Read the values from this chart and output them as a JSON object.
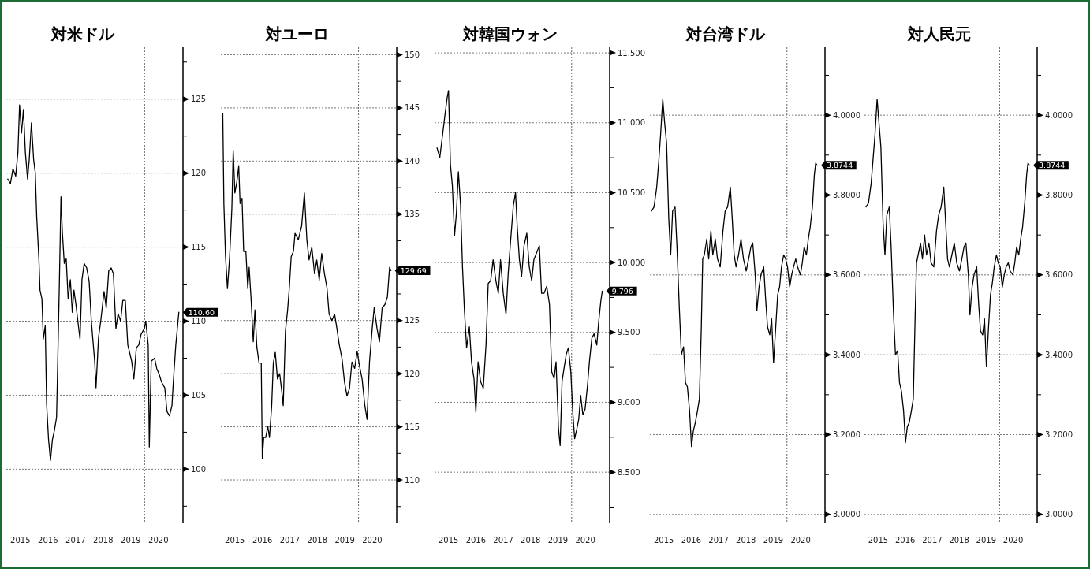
{
  "chart_data": [
    {
      "type": "line",
      "title": "対米ドル",
      "grid": "y",
      "line_style": "solid",
      "x": [
        2015.04,
        2015.14,
        2015.23,
        2015.33,
        2015.41,
        2015.47,
        2015.54,
        2015.61,
        2015.68,
        2015.76,
        2015.82,
        2015.9,
        2015.98,
        2016.04,
        2016.09,
        2016.17,
        2016.21,
        2016.28,
        2016.33,
        2016.4,
        2016.45,
        2016.52,
        2016.59,
        2016.66,
        2016.73,
        2016.81,
        2016.85,
        2016.91,
        2016.97,
        2017.02,
        2017.09,
        2017.16,
        2017.23,
        2017.31,
        2017.38,
        2017.44,
        2017.52,
        2017.6,
        2017.66,
        2017.73,
        2017.81,
        2017.9,
        2017.99,
        2018.07,
        2018.19,
        2018.24,
        2018.33,
        2018.41,
        2018.53,
        2018.61,
        2018.7,
        2018.79,
        2018.87,
        2018.96,
        2019.04,
        2019.13,
        2019.21,
        2019.3,
        2019.39,
        2019.53,
        2019.61,
        2019.7,
        2019.79,
        2019.87,
        2019.99,
        2020.04,
        2020.13,
        2020.17,
        2020.24,
        2020.36,
        2020.44,
        2020.53,
        2020.61,
        2020.73,
        2020.81,
        2020.9,
        2020.99,
        2021.04,
        2021.13,
        2021.21,
        2021.24
      ],
      "series": [
        {
          "color": "#000000",
          "values": [
            119.6,
            119.3,
            120.3,
            119.8,
            121.4,
            124.6,
            122.7,
            124.3,
            121.4,
            119.6,
            120.9,
            123.4,
            120.9,
            120,
            117.1,
            114.2,
            112.1,
            111.5,
            108.8,
            109.7,
            104.4,
            102,
            100.6,
            102,
            102.6,
            103.5,
            107,
            112.4,
            118.4,
            116,
            113.9,
            114.2,
            111.5,
            112.8,
            110.6,
            112.1,
            111,
            109.7,
            108.8,
            112.8,
            113.9,
            113.6,
            112.7,
            110,
            107.3,
            105.5,
            108.9,
            110,
            112,
            110.9,
            113.4,
            113.6,
            113.2,
            109.5,
            110.5,
            110,
            111.4,
            111.4,
            108.4,
            107.3,
            106.1,
            108.2,
            108.4,
            109.1,
            109.5,
            110,
            108.4,
            101.5,
            107.3,
            107.5,
            106.8,
            106.4,
            105.9,
            105.5,
            103.9,
            103.6,
            104.3,
            105.9,
            108.4,
            110,
            110.6
          ]
        }
      ],
      "xlim": [
        2014.99,
        2021.39
      ],
      "ylim": [
        96.4,
        128.5
      ],
      "xticks": [
        {
          "value": 2015.5,
          "label": "2015"
        },
        {
          "value": 2016.5,
          "label": "2016"
        },
        {
          "value": 2017.5,
          "label": "2017"
        },
        {
          "value": 2018.5,
          "label": "2018"
        },
        {
          "value": 2019.5,
          "label": "2019"
        },
        {
          "value": 2020.5,
          "label": "2020"
        }
      ],
      "yticks": [
        {
          "value": 97.5,
          "label": null
        },
        100,
        {
          "value": 102.5,
          "label": null
        },
        105,
        {
          "value": 107.5,
          "label": null
        },
        110,
        {
          "value": 112.5,
          "label": null
        },
        115,
        {
          "value": 117.5,
          "label": null
        },
        120,
        {
          "value": 122.5,
          "label": null
        },
        125,
        {
          "value": 127.5,
          "label": null
        }
      ],
      "ref_lines": [
        {
          "axis": "x",
          "value": 2020.0,
          "line_style": "dotted"
        }
      ],
      "annotations": [
        {
          "text": "110.60",
          "x": 2021.24,
          "y": 110.6
        }
      ]
    },
    {
      "type": "line",
      "title": "対ユーロ",
      "grid": "y",
      "line_style": "solid",
      "x": [
        2015.06,
        2015.1,
        2015.16,
        2015.23,
        2015.31,
        2015.39,
        2015.44,
        2015.5,
        2015.57,
        2015.64,
        2015.69,
        2015.76,
        2015.82,
        2015.9,
        2015.97,
        2016.02,
        2016.09,
        2016.17,
        2016.23,
        2016.3,
        2016.38,
        2016.46,
        2016.5,
        2016.55,
        2016.62,
        2016.7,
        2016.76,
        2016.84,
        2016.9,
        2016.97,
        2017.05,
        2017.13,
        2017.2,
        2017.26,
        2017.34,
        2017.42,
        2017.48,
        2017.55,
        2017.63,
        2017.69,
        2017.81,
        2017.93,
        2018.03,
        2018.12,
        2018.2,
        2018.3,
        2018.4,
        2018.48,
        2018.57,
        2018.66,
        2018.76,
        2018.85,
        2018.93,
        2019.03,
        2019.13,
        2019.21,
        2019.3,
        2019.4,
        2019.49,
        2019.58,
        2019.67,
        2019.76,
        2019.86,
        2019.95,
        2020.03,
        2020.13,
        2020.23,
        2020.31,
        2020.4,
        2020.5,
        2020.57,
        2020.67,
        2020.76,
        2020.86,
        2020.96,
        2021.05,
        2021.13,
        2021.18
      ],
      "series": [
        {
          "color": "#000000",
          "values": [
            144.5,
            136,
            131,
            128,
            131,
            135.5,
            141,
            137,
            138,
            139.5,
            136,
            136.5,
            131.5,
            131.5,
            128,
            130,
            127,
            123,
            126,
            122.5,
            121,
            121,
            112,
            114,
            114,
            115,
            114,
            117,
            121,
            122,
            119.5,
            120,
            118.5,
            117,
            124,
            126,
            128,
            131,
            131.5,
            133.2,
            132.6,
            133.9,
            137,
            132.6,
            130.7,
            131.9,
            129.4,
            130.7,
            128.8,
            131.3,
            129.4,
            128.1,
            125.6,
            125,
            125.6,
            124.3,
            122.7,
            121.4,
            119.2,
            117.9,
            118.6,
            121.1,
            120.5,
            122.1,
            120.8,
            119.5,
            117,
            115.7,
            121.1,
            124.3,
            126.2,
            124.3,
            123,
            126.2,
            126.5,
            127.2,
            130,
            129.69
          ]
        }
      ],
      "xlim": [
        2014.99,
        2021.39
      ],
      "ylim": [
        106,
        150.7
      ],
      "xticks": [
        {
          "value": 2015.5,
          "label": "2015"
        },
        {
          "value": 2016.5,
          "label": "2016"
        },
        {
          "value": 2017.5,
          "label": "2017"
        },
        {
          "value": 2018.5,
          "label": "2018"
        },
        {
          "value": 2019.5,
          "label": "2019"
        },
        {
          "value": 2020.5,
          "label": "2020"
        }
      ],
      "yticks": [
        {
          "value": 107.5,
          "label": null
        },
        110,
        {
          "value": 112.5,
          "label": null
        },
        115,
        {
          "value": 117.5,
          "label": null
        },
        120,
        {
          "value": 122.5,
          "label": null
        },
        125,
        {
          "value": 127.5,
          "label": null
        },
        {
          "value": 130,
          "label": null
        },
        {
          "value": 132.5,
          "label": null
        },
        135,
        {
          "value": 137.5,
          "label": null
        },
        140,
        {
          "value": 142.5,
          "label": null
        },
        145,
        {
          "value": 147.5,
          "label": null
        },
        150
      ],
      "ref_lines": [
        {
          "axis": "x",
          "value": 2020.0,
          "line_style": "dotted"
        }
      ],
      "annotations": [
        {
          "text": "129.69",
          "x": 2021.18,
          "y": 129.69
        }
      ]
    },
    {
      "type": "line",
      "title": "対韓国ウォン",
      "grid": "y",
      "line_style": "solid",
      "x": [
        2015.08,
        2015.18,
        2015.28,
        2015.36,
        2015.45,
        2015.5,
        2015.57,
        2015.64,
        2015.72,
        2015.79,
        2015.86,
        2015.94,
        2016.01,
        2016.08,
        2016.16,
        2016.26,
        2016.34,
        2016.43,
        2016.5,
        2016.58,
        2016.67,
        2016.77,
        2016.87,
        2016.95,
        2017.04,
        2017.13,
        2017.23,
        2017.32,
        2017.4,
        2017.5,
        2017.6,
        2017.68,
        2017.77,
        2017.87,
        2017.95,
        2018.01,
        2018.09,
        2018.17,
        2018.26,
        2018.36,
        2018.45,
        2018.54,
        2018.62,
        2018.72,
        2018.82,
        2018.9,
        2018.99,
        2019.09,
        2019.19,
        2019.27,
        2019.36,
        2019.43,
        2019.52,
        2019.58,
        2019.65,
        2019.72,
        2019.8,
        2019.88,
        2019.97,
        2020.04,
        2020.11,
        2020.19,
        2020.26,
        2020.33,
        2020.41,
        2020.49,
        2020.58,
        2020.65,
        2020.74,
        2020.82,
        2020.92,
        2020.99,
        2021.07,
        2021.12
      ],
      "series": [
        {
          "color": "#000000",
          "values": [
            10.82,
            10.75,
            10.91,
            11.04,
            11.18,
            11.23,
            10.7,
            10.55,
            10.19,
            10.36,
            10.65,
            10.41,
            9.97,
            9.66,
            9.39,
            9.54,
            9.29,
            9.17,
            8.93,
            9.29,
            9.15,
            9.1,
            9.41,
            9.85,
            9.87,
            10.02,
            9.87,
            9.78,
            10.02,
            9.78,
            9.63,
            9.92,
            10.16,
            10.41,
            10.5,
            10.26,
            10.02,
            9.9,
            10.12,
            10.21,
            9.97,
            9.87,
            10.02,
            10.07,
            10.12,
            9.78,
            9.78,
            9.83,
            9.7,
            9.22,
            9.17,
            9.29,
            8.81,
            8.69,
            9.15,
            9.24,
            9.34,
            9.39,
            9.22,
            8.93,
            8.74,
            8.81,
            8.88,
            9.05,
            8.91,
            8.95,
            9.12,
            9.29,
            9.46,
            9.49,
            9.41,
            9.58,
            9.73,
            9.796
          ]
        }
      ],
      "xlim": [
        2014.99,
        2021.39
      ],
      "ylim": [
        8.14,
        11.54
      ],
      "xticks": [
        {
          "value": 2015.5,
          "label": "2015"
        },
        {
          "value": 2016.5,
          "label": "2016"
        },
        {
          "value": 2017.5,
          "label": "2017"
        },
        {
          "value": 2018.5,
          "label": "2018"
        },
        {
          "value": 2019.5,
          "label": "2019"
        },
        {
          "value": 2020.5,
          "label": "2020"
        }
      ],
      "yticks": [
        {
          "value": 8.25,
          "label": null
        },
        {
          "value": 8.5,
          "label": "8.500"
        },
        {
          "value": 8.75,
          "label": null
        },
        {
          "value": 9,
          "label": "9.000"
        },
        {
          "value": 9.25,
          "label": null
        },
        {
          "value": 9.5,
          "label": "9.500"
        },
        {
          "value": 9.75,
          "label": null
        },
        {
          "value": 10,
          "label": "10.000"
        },
        {
          "value": 10.25,
          "label": null
        },
        {
          "value": 10.5,
          "label": "10.500"
        },
        {
          "value": 10.75,
          "label": null
        },
        {
          "value": 11,
          "label": "11.000"
        },
        {
          "value": 11.25,
          "label": null
        },
        {
          "value": 11.5,
          "label": "11.500"
        }
      ],
      "ref_lines": [
        {
          "axis": "x",
          "value": 2020.0,
          "line_style": "dotted"
        }
      ],
      "annotations": [
        {
          "text": "9.796",
          "x": 2021.12,
          "y": 9.796
        }
      ]
    },
    {
      "type": "line",
      "title": "対台湾ドル",
      "grid": "y",
      "line_style": "solid",
      "x": [
        2015.05,
        2015.14,
        2015.24,
        2015.31,
        2015.38,
        2015.46,
        2015.53,
        2015.6,
        2015.68,
        2015.75,
        2015.82,
        2015.91,
        2015.98,
        2016.07,
        2016.14,
        2016.22,
        2016.29,
        2016.36,
        2016.44,
        2016.51,
        2016.58,
        2016.65,
        2016.73,
        2016.8,
        2016.87,
        2016.92,
        2016.98,
        2017.07,
        2017.14,
        2017.22,
        2017.29,
        2017.38,
        2017.46,
        2017.56,
        2017.66,
        2017.74,
        2017.83,
        2017.93,
        2018.0,
        2018.07,
        2018.14,
        2018.23,
        2018.32,
        2018.41,
        2018.51,
        2018.6,
        2018.68,
        2018.75,
        2018.84,
        2018.9,
        2018.98,
        2019.05,
        2019.15,
        2019.22,
        2019.29,
        2019.37,
        2019.44,
        2019.51,
        2019.59,
        2019.66,
        2019.73,
        2019.8,
        2019.88,
        2019.95,
        2020.02,
        2020.1,
        2020.17,
        2020.24,
        2020.32,
        2020.39,
        2020.49,
        2020.56,
        2020.63,
        2020.71,
        2020.78,
        2020.85,
        2020.93,
        2021.0,
        2021.05,
        2021.1
      ],
      "series": [
        {
          "color": "#000000",
          "values": [
            3.76,
            3.77,
            3.82,
            3.88,
            3.95,
            4.04,
            3.98,
            3.93,
            3.74,
            3.65,
            3.76,
            3.77,
            3.67,
            3.51,
            3.4,
            3.42,
            3.33,
            3.32,
            3.26,
            3.17,
            3.21,
            3.23,
            3.26,
            3.29,
            3.47,
            3.64,
            3.65,
            3.69,
            3.64,
            3.71,
            3.65,
            3.69,
            3.64,
            3.62,
            3.71,
            3.76,
            3.77,
            3.82,
            3.74,
            3.65,
            3.62,
            3.65,
            3.69,
            3.64,
            3.61,
            3.64,
            3.67,
            3.68,
            3.6,
            3.51,
            3.57,
            3.6,
            3.62,
            3.54,
            3.47,
            3.45,
            3.49,
            3.38,
            3.47,
            3.55,
            3.57,
            3.62,
            3.65,
            3.64,
            3.62,
            3.57,
            3.6,
            3.62,
            3.64,
            3.62,
            3.6,
            3.63,
            3.67,
            3.65,
            3.69,
            3.72,
            3.77,
            3.85,
            3.88,
            3.8744
          ]
        }
      ],
      "xlim": [
        2014.99,
        2021.39
      ],
      "ylim": [
        2.98,
        4.17
      ],
      "xticks": [
        {
          "value": 2015.5,
          "label": "2015"
        },
        {
          "value": 2016.5,
          "label": "2016"
        },
        {
          "value": 2017.5,
          "label": "2017"
        },
        {
          "value": 2018.5,
          "label": "2018"
        },
        {
          "value": 2019.5,
          "label": "2019"
        },
        {
          "value": 2020.5,
          "label": "2020"
        }
      ],
      "yticks": [
        {
          "value": 3,
          "label": "3.0000"
        },
        {
          "value": 3.1,
          "label": null
        },
        {
          "value": 3.2,
          "label": "3.2000"
        },
        {
          "value": 3.3,
          "label": null
        },
        {
          "value": 3.4,
          "label": "3.4000"
        },
        {
          "value": 3.5,
          "label": null
        },
        {
          "value": 3.6,
          "label": "3.6000"
        },
        {
          "value": 3.7,
          "label": null
        },
        {
          "value": 3.8,
          "label": "3.8000"
        },
        {
          "value": 3.9,
          "label": null
        },
        {
          "value": 4,
          "label": "4.0000"
        },
        {
          "value": 4.1,
          "label": null
        }
      ],
      "ref_lines": [
        {
          "axis": "x",
          "value": 2020.0,
          "line_style": "dotted"
        }
      ],
      "annotations": [
        {
          "text": "3.8744",
          "x": 2021.1,
          "y": 3.8744
        }
      ]
    },
    {
      "type": "line",
      "title": "対人民元",
      "grid": "y",
      "line_style": "solid",
      "x": [
        2015.05,
        2015.14,
        2015.24,
        2015.31,
        2015.38,
        2015.46,
        2015.53,
        2015.6,
        2015.68,
        2015.75,
        2015.82,
        2015.91,
        2015.98,
        2016.07,
        2016.14,
        2016.22,
        2016.29,
        2016.36,
        2016.44,
        2016.51,
        2016.58,
        2016.65,
        2016.73,
        2016.8,
        2016.87,
        2016.92,
        2016.98,
        2017.07,
        2017.14,
        2017.22,
        2017.29,
        2017.38,
        2017.46,
        2017.56,
        2017.66,
        2017.74,
        2017.83,
        2017.93,
        2018.0,
        2018.07,
        2018.14,
        2018.23,
        2018.32,
        2018.41,
        2018.51,
        2018.6,
        2018.68,
        2018.75,
        2018.84,
        2018.9,
        2018.98,
        2019.05,
        2019.15,
        2019.22,
        2019.29,
        2019.37,
        2019.44,
        2019.51,
        2019.59,
        2019.66,
        2019.73,
        2019.8,
        2019.88,
        2019.95,
        2020.02,
        2020.1,
        2020.17,
        2020.24,
        2020.32,
        2020.39,
        2020.49,
        2020.56,
        2020.63,
        2020.71,
        2020.78,
        2020.85,
        2020.93,
        2021.0,
        2021.05,
        2021.1
      ],
      "series": [
        {
          "color": "#000000",
          "values": [
            3.77,
            3.78,
            3.83,
            3.89,
            3.95,
            4.04,
            3.98,
            3.92,
            3.73,
            3.65,
            3.75,
            3.77,
            3.67,
            3.5,
            3.4,
            3.41,
            3.33,
            3.31,
            3.26,
            3.18,
            3.22,
            3.23,
            3.26,
            3.29,
            3.5,
            3.63,
            3.65,
            3.68,
            3.64,
            3.7,
            3.65,
            3.68,
            3.63,
            3.62,
            3.71,
            3.75,
            3.77,
            3.82,
            3.73,
            3.64,
            3.62,
            3.65,
            3.68,
            3.63,
            3.61,
            3.64,
            3.67,
            3.68,
            3.6,
            3.5,
            3.57,
            3.6,
            3.62,
            3.53,
            3.46,
            3.45,
            3.49,
            3.37,
            3.47,
            3.55,
            3.58,
            3.62,
            3.65,
            3.63,
            3.62,
            3.57,
            3.6,
            3.62,
            3.63,
            3.61,
            3.6,
            3.63,
            3.67,
            3.65,
            3.69,
            3.72,
            3.78,
            3.85,
            3.88,
            3.8744
          ]
        }
      ],
      "xlim": [
        2014.99,
        2021.39
      ],
      "ylim": [
        2.98,
        4.17
      ],
      "xticks": [
        {
          "value": 2015.5,
          "label": "2015"
        },
        {
          "value": 2016.5,
          "label": "2016"
        },
        {
          "value": 2017.5,
          "label": "2017"
        },
        {
          "value": 2018.5,
          "label": "2018"
        },
        {
          "value": 2019.5,
          "label": "2019"
        },
        {
          "value": 2020.5,
          "label": "2020"
        }
      ],
      "yticks": [
        {
          "value": 3,
          "label": "3.0000"
        },
        {
          "value": 3.1,
          "label": null
        },
        {
          "value": 3.2,
          "label": "3.2000"
        },
        {
          "value": 3.3,
          "label": null
        },
        {
          "value": 3.4,
          "label": "3.4000"
        },
        {
          "value": 3.5,
          "label": null
        },
        {
          "value": 3.6,
          "label": "3.6000"
        },
        {
          "value": 3.7,
          "label": null
        },
        {
          "value": 3.8,
          "label": "3.8000"
        },
        {
          "value": 3.9,
          "label": null
        },
        {
          "value": 4,
          "label": "4.0000"
        },
        {
          "value": 4.1,
          "label": null
        }
      ],
      "ref_lines": [
        {
          "axis": "x",
          "value": 2020.0,
          "line_style": "dotted"
        }
      ],
      "annotations": [
        {
          "text": "3.8744",
          "x": 2021.1,
          "y": 3.8744
        }
      ]
    }
  ]
}
